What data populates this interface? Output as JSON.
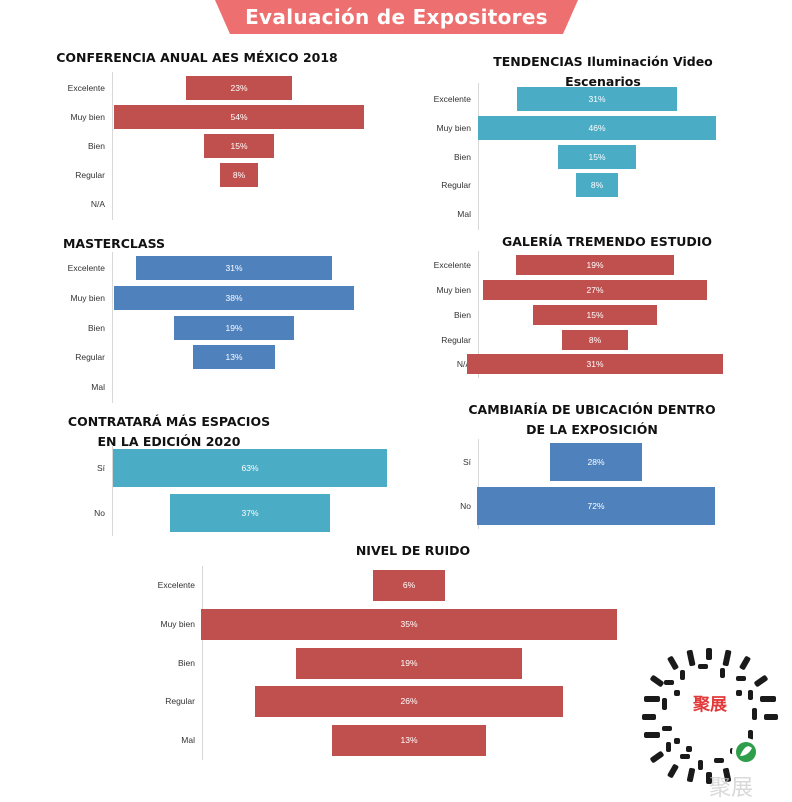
{
  "header": {
    "title": "Evaluación de Expositores",
    "banner_color": "#ee6f70"
  },
  "colors": {
    "red": "#c0504d",
    "blue": "#4f81bd",
    "cyan": "#4bacc6"
  },
  "chart_data": [
    {
      "id": "conf",
      "type": "bar",
      "orientation": "horizontal-centered",
      "title_lines": [
        "CONFERENCIA ANUAL AES  MÉXICO 2018"
      ],
      "categories": [
        "Excelente",
        "Muy bien",
        "Bien",
        "Regular",
        "N/A"
      ],
      "values": [
        23,
        54,
        15,
        8,
        null
      ],
      "labels": [
        "23%",
        "54%",
        "15%",
        "8%",
        ""
      ],
      "color": "red"
    },
    {
      "id": "tend",
      "type": "bar",
      "orientation": "horizontal-centered",
      "title_lines": [
        "TENDENCIAS Iluminación Video",
        "Escenarios"
      ],
      "categories": [
        "Excelente",
        "Muy bien",
        "Bien",
        "Regular",
        "Mal"
      ],
      "values": [
        31,
        46,
        15,
        8,
        null
      ],
      "labels": [
        "31%",
        "46%",
        "15%",
        "8%",
        ""
      ],
      "color": "cyan"
    },
    {
      "id": "master",
      "type": "bar",
      "orientation": "horizontal-centered",
      "title_lines": [
        "MASTERCLASS"
      ],
      "categories": [
        "Excelente",
        "Muy bien",
        "Bien",
        "Regular",
        "Mal"
      ],
      "values": [
        31,
        38,
        19,
        13,
        null
      ],
      "labels": [
        "31%",
        "38%",
        "19%",
        "13%",
        ""
      ],
      "color": "blue"
    },
    {
      "id": "galeria",
      "type": "bar",
      "orientation": "horizontal-centered",
      "title_lines": [
        "GALERÍA TREMENDO ESTUDIO"
      ],
      "categories": [
        "Excelente",
        "Muy bien",
        "Bien",
        "Regular",
        "N/A"
      ],
      "values": [
        19,
        27,
        15,
        8,
        31
      ],
      "labels": [
        "19%",
        "27%",
        "15%",
        "8%",
        "31%"
      ],
      "color": "red"
    },
    {
      "id": "contratara",
      "type": "bar",
      "orientation": "horizontal-centered",
      "title_lines": [
        "CONTRATARÁ MÁS ESPACIOS",
        "EN LA EDICIÓN 2020"
      ],
      "categories": [
        "Sí",
        "No"
      ],
      "values": [
        63,
        37
      ],
      "labels": [
        "63%",
        "37%"
      ],
      "color": "cyan"
    },
    {
      "id": "cambiaria",
      "type": "bar",
      "orientation": "horizontal-centered",
      "title_lines": [
        "CAMBIARÍA DE UBICACIÓN DENTRO",
        "DE LA EXPOSICIÓN"
      ],
      "categories": [
        "Sí",
        "No"
      ],
      "values": [
        28,
        72
      ],
      "labels": [
        "28%",
        "72%"
      ],
      "color": "blue"
    },
    {
      "id": "ruido",
      "type": "bar",
      "orientation": "horizontal-centered",
      "title_lines": [
        "NIVEL DE RUIDO"
      ],
      "categories": [
        "Excelente",
        "Muy bien",
        "Bien",
        "Regular",
        "Mal"
      ],
      "values": [
        6,
        35,
        19,
        26,
        13
      ],
      "labels": [
        "6%",
        "35%",
        "19%",
        "26%",
        "13%"
      ],
      "color": "red"
    }
  ],
  "qr": {
    "logo_text": "聚展",
    "name": "qr-code"
  },
  "watermark": {
    "text": "聚展"
  }
}
